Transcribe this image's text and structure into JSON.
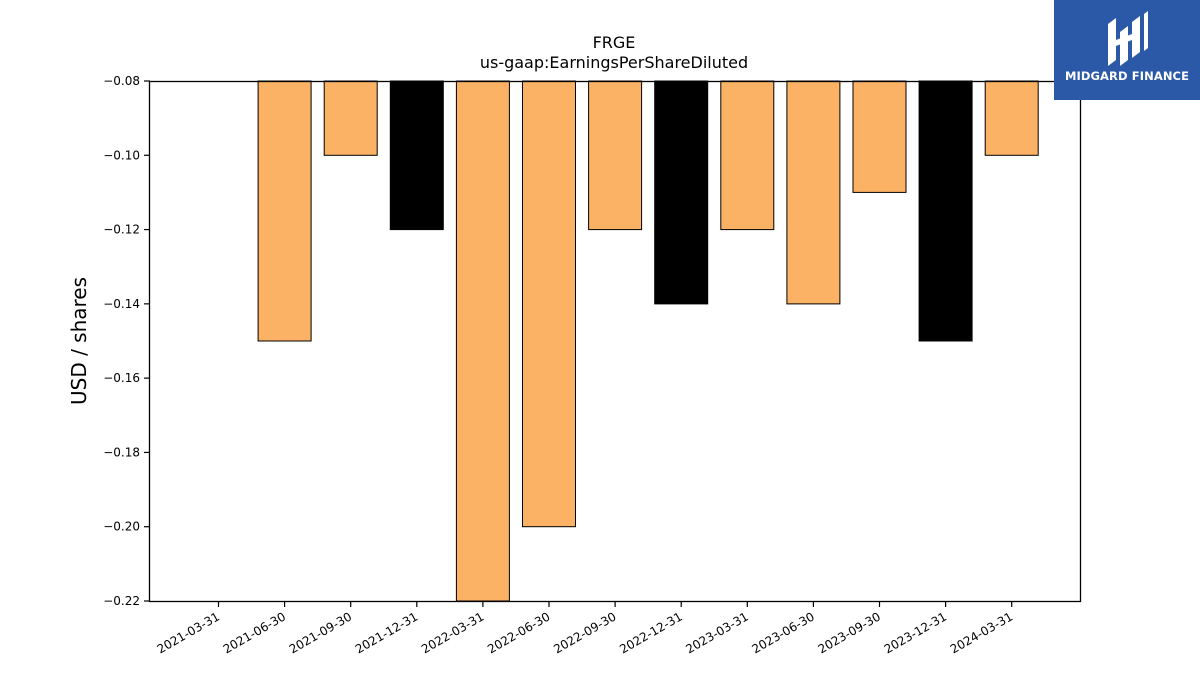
{
  "chart_data": {
    "type": "bar",
    "title": "FRGE",
    "subtitle": "us-gaap:EarningsPerShareDiluted",
    "xlabel": "",
    "ylabel": "USD / shares",
    "ylim": [
      -0.22,
      -0.08
    ],
    "yticks": [
      "−0.08",
      "−0.10",
      "−0.12",
      "−0.14",
      "−0.16",
      "−0.18",
      "−0.20",
      "−0.22"
    ],
    "ytick_values": [
      -0.08,
      -0.1,
      -0.12,
      -0.14,
      -0.16,
      -0.18,
      -0.2,
      -0.22
    ],
    "grid": false,
    "categories": [
      "2021-03-31",
      "2021-06-30",
      "2021-09-30",
      "2021-12-31",
      "2022-03-31",
      "2022-06-30",
      "2022-09-30",
      "2022-12-31",
      "2023-03-31",
      "2023-06-30",
      "2023-09-30",
      "2023-12-31",
      "2024-03-31"
    ],
    "values": [
      null,
      -0.15,
      -0.1,
      -0.12,
      -0.22,
      -0.2,
      -0.12,
      -0.14,
      -0.12,
      -0.14,
      -0.11,
      -0.15,
      -0.1
    ],
    "bar_colors": [
      "#fbb264",
      "#fbb264",
      "#fbb264",
      "#000000",
      "#fbb264",
      "#fbb264",
      "#fbb264",
      "#000000",
      "#fbb264",
      "#fbb264",
      "#fbb264",
      "#000000",
      "#fbb264"
    ]
  },
  "logo": {
    "text": "MIDGARD FINANCE",
    "background": "#2b59a8"
  }
}
